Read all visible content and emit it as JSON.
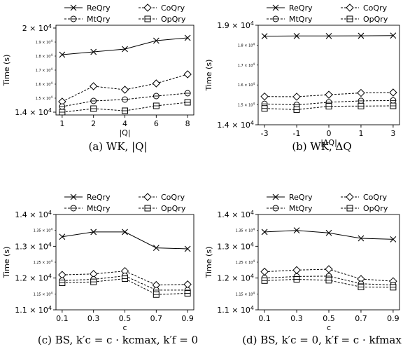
{
  "chart_data": [
    {
      "type": "line",
      "caption": "(a) WK, |Q|",
      "xlabel": "|Q|",
      "ylabel": "Time (s)",
      "categories": [
        "1",
        "2",
        "4",
        "6",
        "8"
      ],
      "ylim": [
        13800,
        20200
      ],
      "y_major_ticks": [
        {
          "v": 14000,
          "label": "1.4 × 10^4"
        },
        {
          "v": 20000,
          "label": "2 × 10^4"
        }
      ],
      "y_minor_ticks": [
        {
          "v": 15000,
          "label": "1.5 × 10^4"
        },
        {
          "v": 16000,
          "label": "1.6 × 10^4"
        },
        {
          "v": 17000,
          "label": "1.7 × 10^4"
        },
        {
          "v": 18000,
          "label": "1.8 × 10^4"
        },
        {
          "v": 19000,
          "label": "1.9 × 10^4"
        }
      ],
      "series": [
        {
          "name": "ReQry",
          "marker": "x",
          "dashed": false,
          "values": [
            18100,
            18300,
            18500,
            19100,
            19300
          ]
        },
        {
          "name": "CoQry",
          "marker": "diamond",
          "dashed": true,
          "values": [
            14750,
            15850,
            15600,
            16050,
            16700
          ]
        },
        {
          "name": "MtQry",
          "marker": "circle",
          "dashed": true,
          "values": [
            14400,
            14800,
            14900,
            15150,
            15350
          ]
        },
        {
          "name": "OpQry",
          "marker": "square",
          "dashed": true,
          "values": [
            14000,
            14250,
            14100,
            14450,
            14700
          ]
        }
      ]
    },
    {
      "type": "line",
      "caption": "(b) WK, ΔQ",
      "xlabel": "|ΔQ|",
      "ylabel": "Time (s)",
      "categories": [
        "-3",
        "-1",
        "0",
        "1",
        "3"
      ],
      "ylim": [
        14000,
        19000
      ],
      "y_major_ticks": [
        {
          "v": 14000,
          "label": "1.4 × 10^4"
        },
        {
          "v": 19000,
          "label": "1.9 × 10^4"
        }
      ],
      "y_minor_ticks": [
        {
          "v": 15000,
          "label": "1.5 × 10^4"
        },
        {
          "v": 16000,
          "label": "1.6 × 10^4"
        },
        {
          "v": 17000,
          "label": "1.7 × 10^4"
        },
        {
          "v": 18000,
          "label": "1.8 × 10^4"
        }
      ],
      "series": [
        {
          "name": "ReQry",
          "marker": "x",
          "dashed": false,
          "values": [
            18450,
            18460,
            18460,
            18470,
            18480
          ]
        },
        {
          "name": "CoQry",
          "marker": "diamond",
          "dashed": true,
          "values": [
            15420,
            15410,
            15510,
            15600,
            15620
          ]
        },
        {
          "name": "MtQry",
          "marker": "circle",
          "dashed": true,
          "values": [
            15050,
            15000,
            15130,
            15200,
            15220
          ]
        },
        {
          "name": "OpQry",
          "marker": "square",
          "dashed": true,
          "values": [
            14820,
            14760,
            14930,
            14940,
            14950
          ]
        }
      ]
    },
    {
      "type": "line",
      "caption": "(c) BS, k′c = c · kcmax, k′f = 0",
      "xlabel": "c",
      "ylabel": "Time (s)",
      "categories": [
        "0.1",
        "0.3",
        "0.5",
        "0.7",
        "0.9"
      ],
      "ylim": [
        11000,
        14000
      ],
      "y_major_ticks": [
        {
          "v": 11000,
          "label": "1.1 × 10^4"
        },
        {
          "v": 12000,
          "label": "1.2 × 10^4"
        },
        {
          "v": 13000,
          "label": "1.3 × 10^4"
        },
        {
          "v": 14000,
          "label": "1.4 × 10^4"
        }
      ],
      "y_minor_ticks": [
        {
          "v": 11500,
          "label": "1.15 × 10^4"
        },
        {
          "v": 12500,
          "label": "1.25 × 10^4"
        },
        {
          "v": 13500,
          "label": "1.35 × 10^4"
        }
      ],
      "series": [
        {
          "name": "ReQry",
          "marker": "x",
          "dashed": false,
          "values": [
            13300,
            13450,
            13450,
            12950,
            12920
          ]
        },
        {
          "name": "CoQry",
          "marker": "diamond",
          "dashed": true,
          "values": [
            12100,
            12130,
            12220,
            11780,
            11800
          ]
        },
        {
          "name": "MtQry",
          "marker": "circle",
          "dashed": true,
          "values": [
            11920,
            11960,
            12070,
            11620,
            11620
          ]
        },
        {
          "name": "OpQry",
          "marker": "square",
          "dashed": true,
          "values": [
            11850,
            11880,
            11980,
            11480,
            11520
          ]
        }
      ]
    },
    {
      "type": "line",
      "caption": "(d) BS, k′c = 0, k′f = c · kfmax",
      "xlabel": "c",
      "ylabel": "Time (s)",
      "categories": [
        "0.1",
        "0.3",
        "0.5",
        "0.7",
        "0.9"
      ],
      "ylim": [
        11000,
        14000
      ],
      "y_major_ticks": [
        {
          "v": 11000,
          "label": "1.1 × 10^4"
        },
        {
          "v": 12000,
          "label": "1.2 × 10^4"
        },
        {
          "v": 13000,
          "label": "1.3 × 10^4"
        },
        {
          "v": 14000,
          "label": "1.4 × 10^4"
        }
      ],
      "y_minor_ticks": [
        {
          "v": 11500,
          "label": "1.15 × 10^4"
        },
        {
          "v": 12500,
          "label": "1.25 × 10^4"
        },
        {
          "v": 13500,
          "label": "1.35 × 10^4"
        }
      ],
      "series": [
        {
          "name": "ReQry",
          "marker": "x",
          "dashed": false,
          "values": [
            13450,
            13500,
            13420,
            13250,
            13220
          ]
        },
        {
          "name": "CoQry",
          "marker": "diamond",
          "dashed": true,
          "values": [
            12200,
            12250,
            12280,
            11970,
            11900
          ]
        },
        {
          "name": "MtQry",
          "marker": "circle",
          "dashed": true,
          "values": [
            12000,
            12050,
            12060,
            11820,
            11780
          ]
        },
        {
          "name": "OpQry",
          "marker": "square",
          "dashed": true,
          "values": [
            11920,
            11960,
            11930,
            11720,
            11710
          ]
        }
      ]
    }
  ]
}
